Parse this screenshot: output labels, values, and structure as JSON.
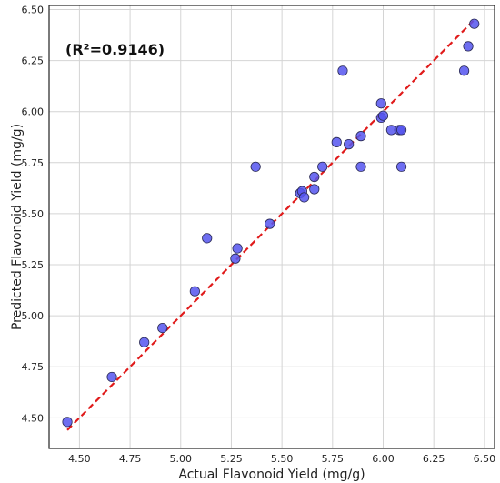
{
  "chart_data": {
    "type": "scatter",
    "title": "",
    "xlabel": "Actual Flavonoid Yield (mg/g)",
    "ylabel": "Predicted Flavonoid Yield (mg/g)",
    "xlim": [
      4.35,
      6.55
    ],
    "ylim": [
      4.35,
      6.52
    ],
    "xticks": [
      "4.50",
      "4.75",
      "5.00",
      "5.25",
      "5.50",
      "5.75",
      "6.00",
      "6.25",
      "6.50"
    ],
    "yticks": [
      "4.50",
      "4.75",
      "5.00",
      "5.25",
      "5.50",
      "5.75",
      "6.00",
      "6.25",
      "6.50"
    ],
    "grid": true,
    "annotation": "(R²=0.9146)",
    "fit_line": {
      "x": [
        4.44,
        6.45
      ],
      "y": [
        4.44,
        6.45
      ],
      "color": "#e01b1b",
      "style": "dashed"
    },
    "point_color": "#5555ee",
    "points": [
      {
        "x": 4.44,
        "y": 4.48
      },
      {
        "x": 4.66,
        "y": 4.7
      },
      {
        "x": 4.82,
        "y": 4.87
      },
      {
        "x": 4.91,
        "y": 4.94
      },
      {
        "x": 5.07,
        "y": 5.12
      },
      {
        "x": 5.13,
        "y": 5.38
      },
      {
        "x": 5.27,
        "y": 5.28
      },
      {
        "x": 5.28,
        "y": 5.33
      },
      {
        "x": 5.37,
        "y": 5.73
      },
      {
        "x": 5.44,
        "y": 5.45
      },
      {
        "x": 5.59,
        "y": 5.6
      },
      {
        "x": 5.6,
        "y": 5.61
      },
      {
        "x": 5.61,
        "y": 5.58
      },
      {
        "x": 5.66,
        "y": 5.62
      },
      {
        "x": 5.66,
        "y": 5.68
      },
      {
        "x": 5.7,
        "y": 5.73
      },
      {
        "x": 5.77,
        "y": 5.85
      },
      {
        "x": 5.8,
        "y": 6.2
      },
      {
        "x": 5.83,
        "y": 5.84
      },
      {
        "x": 5.89,
        "y": 5.88
      },
      {
        "x": 5.89,
        "y": 5.73
      },
      {
        "x": 5.99,
        "y": 5.97
      },
      {
        "x": 6.0,
        "y": 5.98
      },
      {
        "x": 5.99,
        "y": 6.04
      },
      {
        "x": 6.04,
        "y": 5.91
      },
      {
        "x": 6.08,
        "y": 5.91
      },
      {
        "x": 6.09,
        "y": 5.91
      },
      {
        "x": 6.09,
        "y": 5.73
      },
      {
        "x": 6.4,
        "y": 6.2
      },
      {
        "x": 6.42,
        "y": 6.32
      },
      {
        "x": 6.45,
        "y": 6.43
      }
    ]
  }
}
